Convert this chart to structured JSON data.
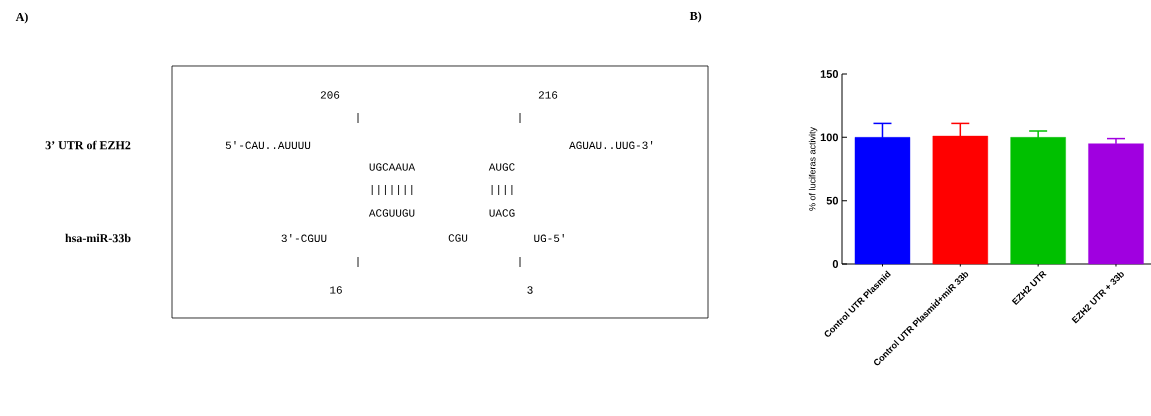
{
  "chart_data": [
    {
      "type": "other",
      "annotations": [
        "A)",
        "206",
        "216",
        "|",
        "|",
        "3’ UTR of EZH2",
        "5'-CAU..AUUUU",
        "AGUAU..UUG-3'",
        "UGCAAUA",
        "AUGC",
        "|||||||",
        "||||",
        "ACGUUGU",
        "UACG",
        "hsa-miR-33b",
        "3'-CGUU",
        "CGU",
        "UG-5'",
        "|",
        "|",
        "16",
        "3"
      ]
    },
    {
      "type": "bar",
      "annotations": [
        "B)"
      ],
      "ylabel": "% of luciferas activity",
      "categories": [
        "Control UTR Plasmid",
        "Control UTR Plasmid+miR 33b",
        "EZH2 UTR",
        "EZH2 UTR + 33b"
      ],
      "values": [
        100,
        101,
        100,
        95
      ],
      "errors": [
        11,
        10,
        5,
        4
      ],
      "colors": [
        "#0000ff",
        "#ff0000",
        "#00c000",
        "#a000e0"
      ],
      "ylim": [
        0,
        150
      ],
      "yticks": [
        0,
        50,
        100,
        150
      ]
    }
  ]
}
